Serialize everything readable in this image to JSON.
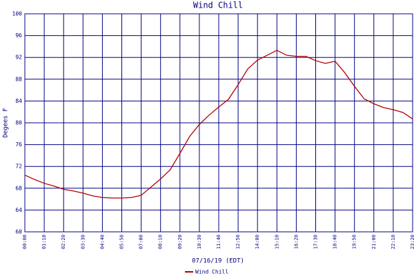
{
  "chart_data": {
    "type": "line",
    "title": "Wind Chill",
    "x_label": "07/16/19 (EDT)",
    "y_label": "Degees F",
    "categories": [
      "00:00",
      null,
      "01:10",
      null,
      "02:20",
      null,
      "03:30",
      null,
      "04:40",
      null,
      "05:50",
      null,
      "07:00",
      null,
      "08:10",
      null,
      "09:20",
      null,
      "10:30",
      null,
      "11:40",
      null,
      "12:50",
      null,
      "14:00",
      null,
      "15:10",
      null,
      "16:20",
      null,
      "17:30",
      null,
      "18:40",
      null,
      "19:50",
      null,
      "21:00",
      null,
      "22:10",
      null,
      "23:20"
    ],
    "series": [
      {
        "name": "Wind Chill",
        "color": "#b00000",
        "values": [
          70.4,
          69.6,
          68.9,
          68.4,
          67.8,
          67.5,
          67.1,
          66.6,
          66.3,
          66.2,
          66.2,
          66.3,
          66.7,
          68.2,
          69.7,
          71.4,
          74.4,
          77.5,
          79.7,
          81.4,
          82.9,
          84.3,
          87.0,
          89.9,
          91.5,
          92.4,
          93.3,
          92.4,
          92.2,
          92.2,
          91.4,
          90.9,
          91.3,
          89.2,
          86.7,
          84.4,
          83.5,
          82.8,
          82.4,
          81.9,
          80.7
        ]
      }
    ],
    "ylim": [
      60,
      100
    ],
    "yticks": [
      60,
      64,
      68,
      72,
      76,
      80,
      84,
      88,
      92,
      96,
      100
    ],
    "grid": true,
    "legend": "bottom"
  }
}
